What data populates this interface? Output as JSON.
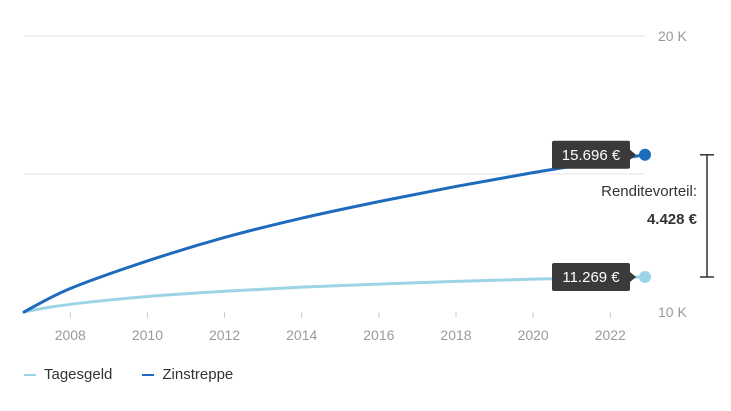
{
  "chart_data": {
    "type": "line",
    "x_range": [
      2006.8,
      2022.9
    ],
    "x_ticks": [
      2008,
      2010,
      2012,
      2014,
      2016,
      2018,
      2020,
      2022
    ],
    "y_range": [
      10000,
      20000
    ],
    "y_ticks": [
      {
        "value": 10000,
        "label": "10 K"
      },
      {
        "value": 20000,
        "label": "20 K"
      }
    ],
    "y_gridlines": [
      15000,
      20000
    ],
    "series": [
      {
        "name": "Tagesgeld",
        "color": "#9dd3e6",
        "points": [
          [
            2006.8,
            10000
          ],
          [
            2007.5,
            10180
          ],
          [
            2008.5,
            10360
          ],
          [
            2010,
            10560
          ],
          [
            2012,
            10750
          ],
          [
            2014,
            10900
          ],
          [
            2016,
            11010
          ],
          [
            2018,
            11110
          ],
          [
            2020,
            11190
          ],
          [
            2022,
            11250
          ],
          [
            2022.9,
            11269
          ]
        ],
        "end_label": "11.269 €"
      },
      {
        "name": "Zinstreppe",
        "color": "#1d6bbd",
        "points": [
          [
            2006.8,
            10000
          ],
          [
            2008,
            10850
          ],
          [
            2010,
            11850
          ],
          [
            2012,
            12700
          ],
          [
            2014,
            13400
          ],
          [
            2016,
            14000
          ],
          [
            2018,
            14550
          ],
          [
            2020,
            15050
          ],
          [
            2022,
            15500
          ],
          [
            2022.9,
            15696
          ]
        ],
        "end_label": "15.696 €"
      }
    ],
    "annotation": {
      "label": "Renditevorteil:",
      "value": "4.428 €"
    },
    "legend_position": "bottom-left"
  }
}
